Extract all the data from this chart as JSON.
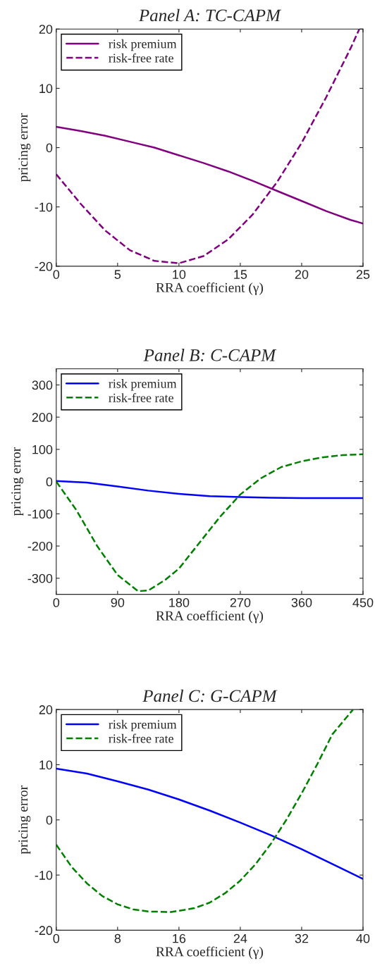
{
  "chart_data": [
    {
      "type": "line",
      "title": "Panel A: TC-CAPM",
      "xlabel": "RRA coefficient (γ)",
      "ylabel": "pricing error",
      "xlim": [
        0,
        25
      ],
      "xticks": [
        0,
        5,
        10,
        15,
        20,
        25
      ],
      "ylim": [
        -20,
        20
      ],
      "yticks": [
        -20,
        -10,
        0,
        10,
        20
      ],
      "grid": false,
      "legend": "top left",
      "series": [
        {
          "name": "risk premium",
          "color": "#800080",
          "line_style": "solid",
          "x": [
            0,
            2,
            4,
            6,
            8,
            10,
            12,
            14,
            16,
            18,
            20,
            22,
            24,
            25
          ],
          "values": [
            3.5,
            2.8,
            2,
            1,
            0,
            -1.3,
            -2.6,
            -4,
            -5.6,
            -7.3,
            -9,
            -10.7,
            -12.2,
            -12.8
          ]
        },
        {
          "name": "risk-free rate",
          "color": "#800080",
          "line_style": "dashed",
          "x": [
            0,
            2,
            4,
            6,
            8,
            10,
            12,
            14,
            16,
            18,
            20,
            22,
            24,
            24.7
          ],
          "values": [
            -4.5,
            -9.5,
            -14,
            -17.3,
            -19.1,
            -19.5,
            -18.3,
            -15.5,
            -11.3,
            -5.8,
            0.8,
            8.5,
            16.8,
            20
          ]
        }
      ]
    },
    {
      "type": "line",
      "title": "Panel B: C-CAPM",
      "xlabel": "RRA coefficient (γ)",
      "ylabel": "pricing error",
      "xlim": [
        0,
        450
      ],
      "xticks": [
        0,
        90,
        180,
        270,
        360,
        450
      ],
      "ylim": [
        -350,
        350
      ],
      "yticks": [
        -300,
        -200,
        -100,
        0,
        100,
        200,
        300
      ],
      "grid": false,
      "legend": "top left",
      "series": [
        {
          "name": "risk premium",
          "color": "#0000ff",
          "line_style": "solid",
          "x": [
            0,
            45,
            90,
            135,
            180,
            225,
            270,
            315,
            360,
            405,
            450
          ],
          "values": [
            2,
            -3,
            -15,
            -28,
            -38,
            -45,
            -48,
            -50,
            -51,
            -51,
            -51
          ]
        },
        {
          "name": "risk-free rate",
          "color": "#008000",
          "line_style": "dashed",
          "x": [
            0,
            30,
            60,
            90,
            120,
            135,
            160,
            180,
            210,
            240,
            270,
            300,
            330,
            360,
            390,
            420,
            450
          ],
          "values": [
            0,
            -90,
            -200,
            -290,
            -340,
            -338,
            -305,
            -270,
            -190,
            -110,
            -40,
            10,
            45,
            63,
            75,
            82,
            85
          ]
        }
      ]
    },
    {
      "type": "line",
      "title": "Panel C: G-CAPM",
      "xlabel": "RRA coefficient (γ)",
      "ylabel": "pricing error",
      "xlim": [
        0,
        40
      ],
      "xticks": [
        0,
        8,
        16,
        24,
        32,
        40
      ],
      "ylim": [
        -20,
        20
      ],
      "yticks": [
        -20,
        -10,
        0,
        10,
        20
      ],
      "grid": false,
      "legend": "top left",
      "series": [
        {
          "name": "risk premium",
          "color": "#0000ff",
          "line_style": "solid",
          "x": [
            0,
            4,
            8,
            12,
            16,
            20,
            24,
            28,
            32,
            36,
            40
          ],
          "values": [
            9.3,
            8.4,
            7,
            5.5,
            3.7,
            1.7,
            -0.5,
            -2.8,
            -5.3,
            -8,
            -10.7
          ]
        },
        {
          "name": "risk-free rate",
          "color": "#008000",
          "line_style": "dashed",
          "x": [
            0,
            2,
            4,
            6,
            8,
            10,
            12,
            15,
            18,
            20,
            22,
            24,
            26,
            28,
            30,
            32,
            34,
            36,
            38.7
          ],
          "values": [
            -4.5,
            -8.5,
            -11.5,
            -13.8,
            -15.3,
            -16.2,
            -16.6,
            -16.7,
            -16,
            -15,
            -13.3,
            -11,
            -8,
            -4.3,
            0,
            4.8,
            10,
            15.5,
            20
          ]
        }
      ]
    }
  ]
}
